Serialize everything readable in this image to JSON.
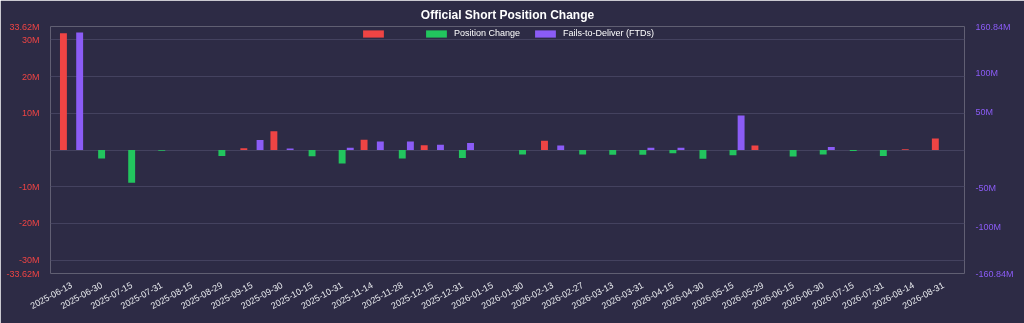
{
  "chart_data": {
    "type": "bar",
    "title": "Official Short Position Change",
    "categories": [
      "2025-06-13",
      "2025-06-30",
      "2025-07-15",
      "2025-07-31",
      "2025-08-15",
      "2025-08-29",
      "2025-09-15",
      "2025-09-30",
      "2025-10-15",
      "2025-10-31",
      "2025-11-14",
      "2025-11-28",
      "2025-12-15",
      "2025-12-31",
      "2026-01-15",
      "2026-01-30",
      "2026-02-13",
      "2026-02-27",
      "2026-03-13",
      "2026-03-31",
      "2026-04-15",
      "2026-04-30",
      "2026-05-15",
      "2026-05-29",
      "2026-06-15",
      "2026-06-30",
      "2026-07-15",
      "2026-07-31",
      "2026-08-14",
      "2026-08-31"
    ],
    "series": [
      {
        "color": "#ef4444",
        "values": [
          31.8,
          null,
          null,
          null,
          null,
          null,
          0.5,
          5.1,
          null,
          null,
          2.8,
          null,
          1.3,
          null,
          null,
          null,
          2.5,
          null,
          null,
          null,
          null,
          null,
          null,
          1.2,
          null,
          null,
          null,
          null,
          0.2,
          3.1
        ]
      },
      {
        "name": "Position Change",
        "color": "#22c55e",
        "values": [
          null,
          -2.3,
          -8.9,
          -0.2,
          null,
          -1.6,
          null,
          null,
          -1.7,
          -3.7,
          null,
          -2.3,
          null,
          -2.2,
          null,
          -1.2,
          null,
          -1.2,
          -1.3,
          -1.3,
          -0.9,
          -2.4,
          -1.4,
          null,
          -1.8,
          -1.2,
          -0.3,
          -1.6,
          null,
          null
        ]
      },
      {
        "name": "Fails-to-Deliver (FTDs)",
        "color": "#8b5cf6",
        "axis": "y2",
        "values": [
          153,
          null,
          null,
          null,
          null,
          null,
          13,
          2,
          null,
          3,
          11,
          11,
          7,
          9,
          null,
          null,
          6,
          null,
          null,
          3,
          3,
          null,
          45,
          null,
          null,
          4,
          null,
          null,
          null,
          null
        ]
      }
    ],
    "ylim": [
      -33.62,
      33.62
    ],
    "yticks": [
      {
        "value": -33.62,
        "label": "-33.62M"
      },
      {
        "value": -30,
        "label": "-30M"
      },
      {
        "value": -20,
        "label": "-20M"
      },
      {
        "value": -10,
        "label": "-10M"
      },
      {
        "value": 0,
        "label": null
      },
      {
        "value": 10,
        "label": "10M"
      },
      {
        "value": 20,
        "label": "20M"
      },
      {
        "value": 30,
        "label": "30M"
      },
      {
        "value": 33.62,
        "label": "33.62M"
      }
    ],
    "y2lim": [
      -160.84,
      160.84
    ],
    "y2ticks": [
      {
        "value": -160.84,
        "label": "-160.84M"
      },
      {
        "value": -100,
        "label": "-100M"
      },
      {
        "value": -50,
        "label": "-50M"
      },
      {
        "value": 0,
        "label": null
      },
      {
        "value": 50,
        "label": "50M"
      },
      {
        "value": 100,
        "label": "100M"
      },
      {
        "value": 160.84,
        "label": "160.84M"
      }
    ],
    "grid": "y",
    "legend": "top"
  }
}
